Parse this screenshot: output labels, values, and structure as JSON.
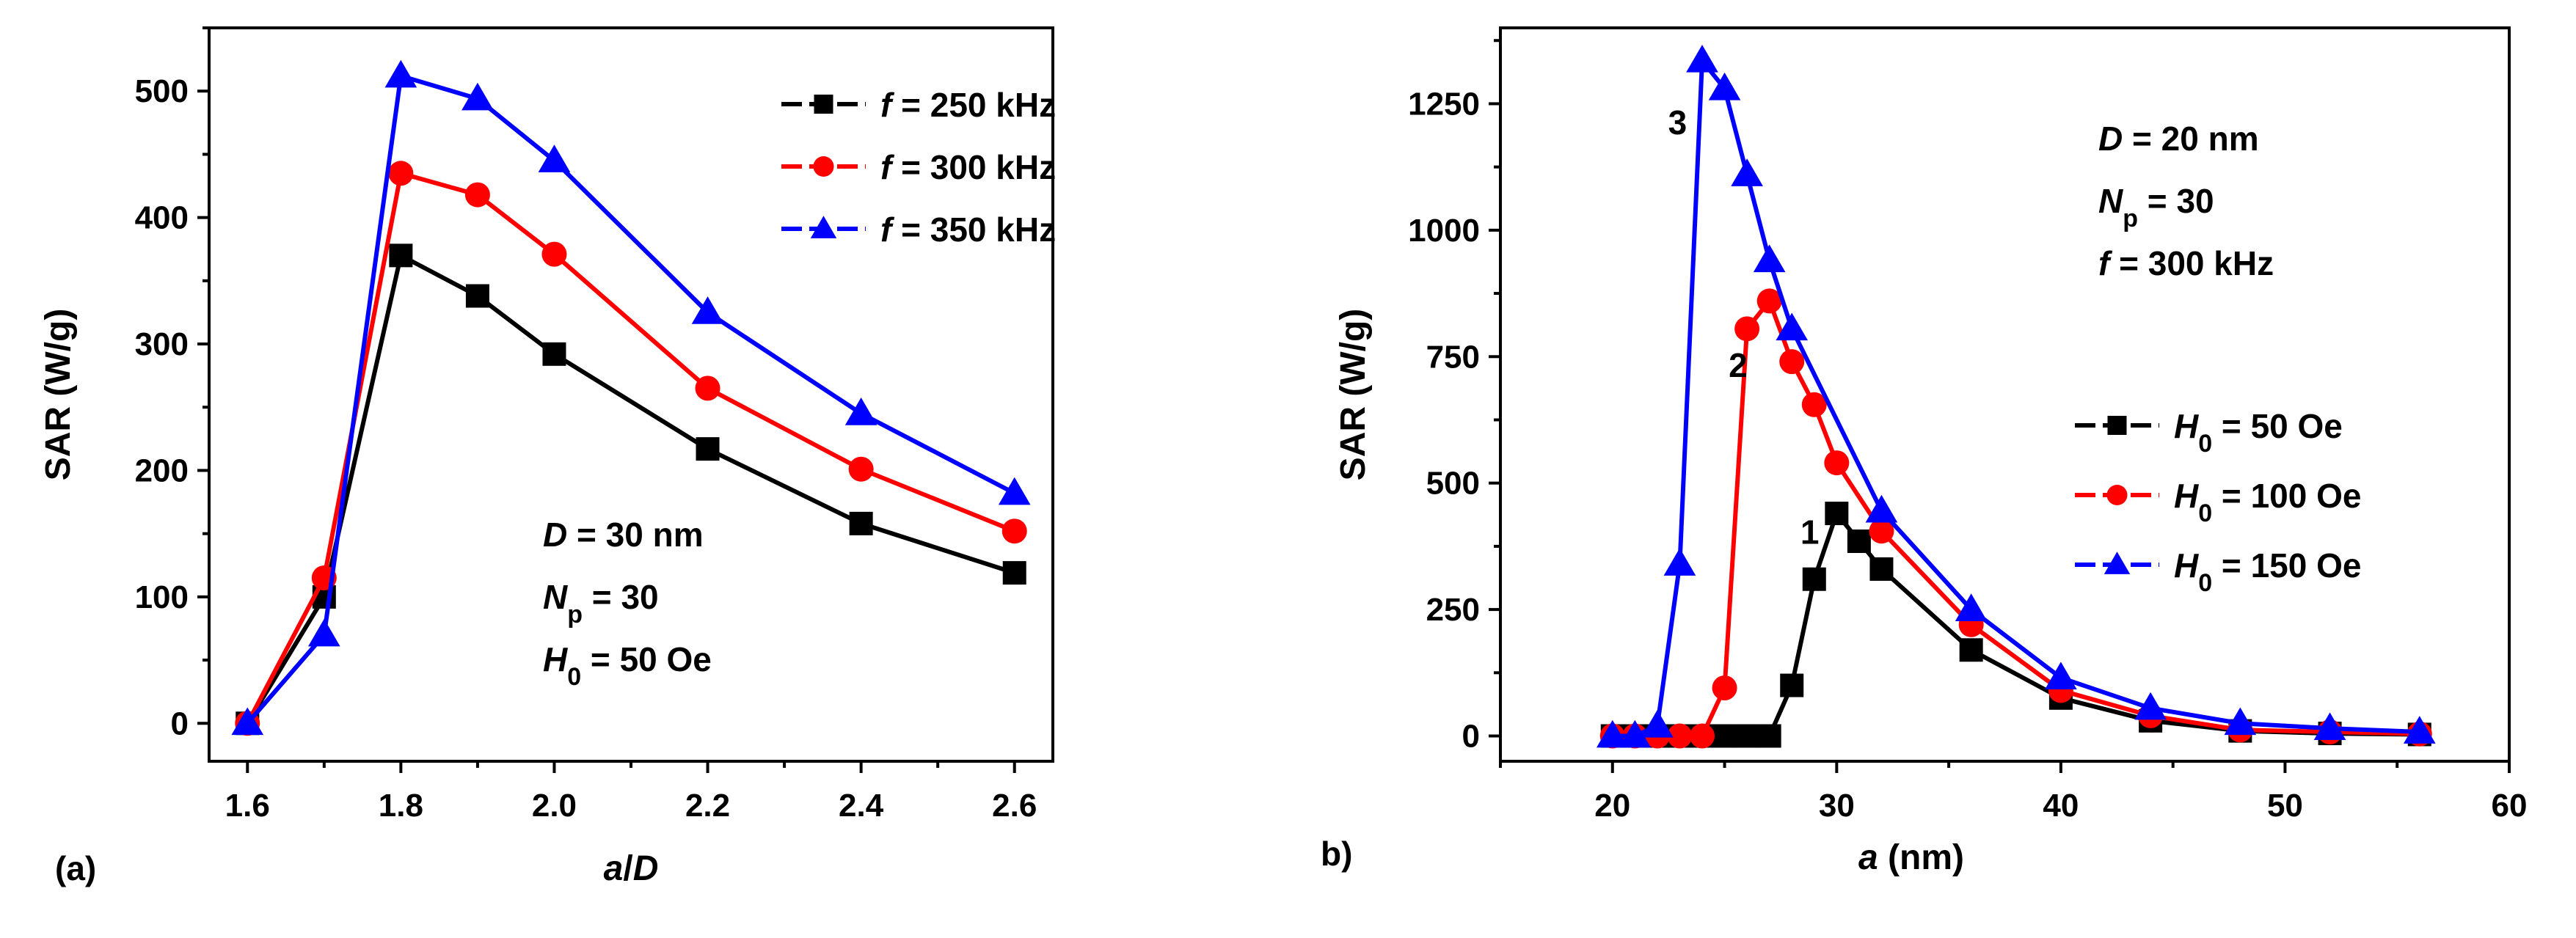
{
  "chart_data": [
    {
      "type": "line",
      "panel_label": "(a)",
      "xlabel": "a/D",
      "ylabel": "SAR (W/g)",
      "xlim": [
        1.55,
        2.65
      ],
      "ylim": [
        -30,
        550
      ],
      "x_ticks": [
        1.6,
        1.8,
        2.0,
        2.2,
        2.4,
        2.6
      ],
      "x_tick_labels": [
        "1.6",
        "1.8",
        "2.0",
        "2.2",
        "2.4",
        "2.6"
      ],
      "y_ticks": [
        0,
        100,
        200,
        300,
        400,
        500
      ],
      "y_tick_labels": [
        "0",
        "100",
        "200",
        "300",
        "400",
        "500"
      ],
      "legend_position": "top-right",
      "annotations": [
        {
          "italic": "D",
          "rest": " = 30 nm"
        },
        {
          "italic": "N",
          "sub": "p",
          "rest": " = 30"
        },
        {
          "italic": "H",
          "sub": "0",
          "rest": " = 50 Oe"
        }
      ],
      "series": [
        {
          "name": "f = 250 kHz",
          "legend_italic": "f",
          "legend_rest": " = 250 kHz",
          "color": "#000000",
          "marker": "square",
          "x": [
            1.6,
            1.7,
            1.8,
            1.9,
            2.0,
            2.2,
            2.4,
            2.6
          ],
          "values": [
            0,
            100,
            370,
            338,
            292,
            217,
            158,
            119
          ]
        },
        {
          "name": "f = 300 kHz",
          "legend_italic": "f",
          "legend_rest": " = 300 kHz",
          "color": "#ff0000",
          "marker": "circle",
          "x": [
            1.6,
            1.7,
            1.8,
            1.9,
            2.0,
            2.2,
            2.4,
            2.6
          ],
          "values": [
            0,
            115,
            435,
            418,
            371,
            265,
            201,
            152
          ]
        },
        {
          "name": "f = 350 kHz",
          "legend_italic": "f",
          "legend_rest": " = 350 kHz",
          "color": "#0000ff",
          "marker": "triangle",
          "x": [
            1.6,
            1.7,
            1.8,
            1.9,
            2.0,
            2.2,
            2.4,
            2.6
          ],
          "values": [
            0,
            70,
            512,
            494,
            445,
            325,
            245,
            182
          ]
        }
      ]
    },
    {
      "type": "line",
      "panel_label": "b)",
      "xlabel": "a (nm)",
      "ylabel": "SAR (W/g)",
      "xlim": [
        15,
        60
      ],
      "ylim": [
        -50,
        1400
      ],
      "x_ticks": [
        20,
        30,
        40,
        50,
        60
      ],
      "x_tick_labels": [
        "20",
        "30",
        "40",
        "50",
        "60"
      ],
      "y_ticks": [
        0,
        250,
        500,
        750,
        1000,
        1250
      ],
      "y_tick_labels": [
        "0",
        "250",
        "500",
        "750",
        "1000",
        "1250"
      ],
      "legend_position": "right",
      "annotations": [
        {
          "italic": "D",
          "rest": " = 20 nm"
        },
        {
          "italic": "N",
          "sub": "p",
          "rest": " = 30"
        },
        {
          "italic": "f",
          "rest": " = 300 kHz"
        }
      ],
      "curve_labels": [
        {
          "text": "1",
          "x": 28.8,
          "y": 380
        },
        {
          "text": "2",
          "x": 25.6,
          "y": 710
        },
        {
          "text": "3",
          "x": 22.9,
          "y": 1190
        }
      ],
      "series": [
        {
          "name": "H0 = 50 Oe",
          "legend_italic": "H",
          "legend_sub": "0",
          "legend_rest": " = 50 Oe",
          "color": "#000000",
          "marker": "square",
          "x": [
            20,
            21,
            22,
            23,
            24,
            25,
            26,
            27,
            28,
            29,
            30,
            31,
            32,
            36,
            40,
            44,
            48,
            52,
            56
          ],
          "values": [
            0,
            0,
            0,
            0,
            0,
            0,
            0,
            0,
            100,
            310,
            440,
            385,
            330,
            170,
            75,
            30,
            10,
            5,
            3
          ]
        },
        {
          "name": "H0 = 100 Oe",
          "legend_italic": "H",
          "legend_sub": "0",
          "legend_rest": " = 100 Oe",
          "color": "#ff0000",
          "marker": "circle",
          "x": [
            20,
            21,
            22,
            23,
            24,
            25,
            26,
            27,
            28,
            29,
            30,
            32,
            36,
            40,
            44,
            48,
            52,
            56
          ],
          "values": [
            0,
            0,
            0,
            0,
            0,
            95,
            805,
            860,
            740,
            655,
            540,
            405,
            220,
            90,
            40,
            12,
            8,
            4
          ]
        },
        {
          "name": "H0 = 150 Oe",
          "legend_italic": "H",
          "legend_sub": "0",
          "legend_rest": " = 150 Oe",
          "color": "#0000ff",
          "marker": "triangle",
          "x": [
            20,
            21,
            22,
            23,
            24,
            25,
            26,
            27,
            28,
            32,
            36,
            40,
            44,
            48,
            52,
            56
          ],
          "values": [
            0,
            0,
            20,
            340,
            1335,
            1280,
            1110,
            940,
            805,
            445,
            250,
            115,
            55,
            25,
            15,
            8
          ]
        }
      ]
    }
  ]
}
